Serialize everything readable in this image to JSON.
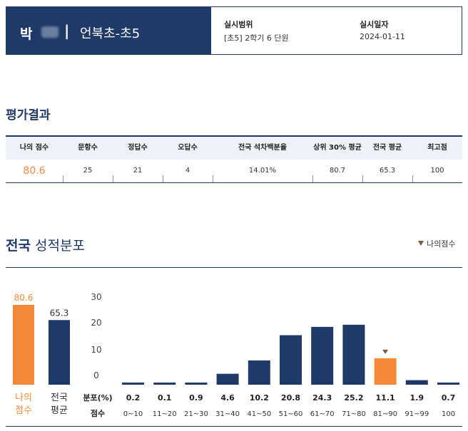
{
  "header": {
    "student_name": "박",
    "separator": "|",
    "school": "언북초-초5",
    "scope_label": "실시범위",
    "scope_value": "[초5] 2학기 6 단원",
    "date_label": "실시일자",
    "date_value": "2024-01-11"
  },
  "results": {
    "title": "평가결과",
    "headers": [
      "나의 점수",
      "문항수",
      "정답수",
      "오답수",
      "전국 석차백분율",
      "상위 30% 평균",
      "전국 평균",
      "최고점"
    ],
    "values": [
      "80.6",
      "25",
      "21",
      "4",
      "14.01%",
      "80.7",
      "65.3",
      "100"
    ]
  },
  "distribution": {
    "title_bold": "전국",
    "title_rest": " 성적분포",
    "legend_label": "나의점수"
  },
  "colors": {
    "navy": "#1f3a68",
    "orange": "#f5893a",
    "marker": "#7a5a3a"
  },
  "chart_data": [
    {
      "type": "bar",
      "categories": [
        "나의\n점수",
        "전국\n평균"
      ],
      "values": [
        80.6,
        65.3
      ],
      "value_labels": [
        "80.6",
        "65.3"
      ],
      "highlight_index": 0
    },
    {
      "type": "bar",
      "yticks": [
        "30",
        "20",
        "10",
        "0"
      ],
      "ylim": [
        0,
        30
      ],
      "row_labels": [
        "분포(%)",
        "점수"
      ],
      "categories": [
        "0~10",
        "11~20",
        "21~30",
        "31~40",
        "41~50",
        "51~60",
        "61~70",
        "71~80",
        "81~90",
        "91~99",
        "100"
      ],
      "values": [
        0.2,
        0.1,
        0.9,
        4.6,
        10.2,
        20.8,
        24.3,
        25.2,
        11.1,
        1.9,
        0.7
      ],
      "value_labels": [
        "0.2",
        "0.1",
        "0.9",
        "4.6",
        "10.2",
        "20.8",
        "24.3",
        "25.2",
        "11.1",
        "1.9",
        "0.7"
      ],
      "highlight_index": 8
    }
  ]
}
